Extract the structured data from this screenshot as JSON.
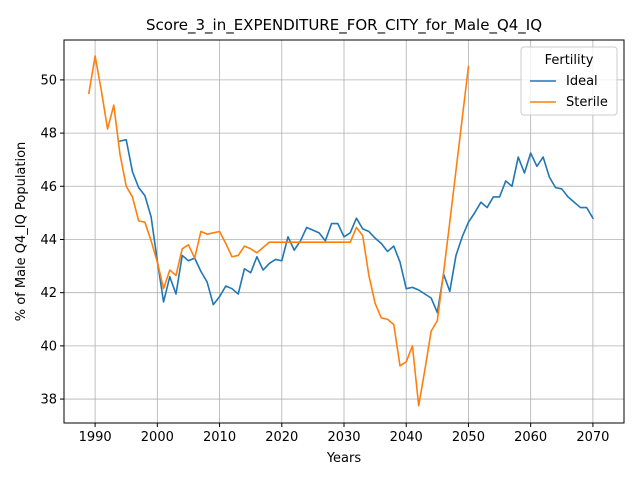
{
  "chart_data": {
    "type": "line",
    "title": "Score_3_in_EXPENDITURE_FOR_CITY_for_Male_Q4_IQ",
    "xlabel": "Years",
    "ylabel": "% of Male Q4_IQ Population",
    "xlim": [
      1985,
      2075
    ],
    "ylim": [
      37.1,
      51.5
    ],
    "xticks": [
      1990,
      2000,
      2010,
      2020,
      2030,
      2040,
      2050,
      2060,
      2070
    ],
    "yticks": [
      38,
      40,
      42,
      44,
      46,
      48,
      50
    ],
    "grid": true,
    "legend": {
      "title": "Fertility",
      "placement": "top-right"
    },
    "series": [
      {
        "name": "Ideal",
        "color": "#1f77b4",
        "x": [
          1994,
          1995,
          1996,
          1997,
          1998,
          1999,
          2000,
          2001,
          2002,
          2003,
          2004,
          2005,
          2006,
          2007,
          2008,
          2009,
          2010,
          2011,
          2012,
          2013,
          2014,
          2015,
          2016,
          2017,
          2018,
          2019,
          2020,
          2021,
          2022,
          2023,
          2024,
          2025,
          2026,
          2027,
          2028,
          2029,
          2030,
          2031,
          2032,
          2033,
          2034,
          2035,
          2036,
          2037,
          2038,
          2039,
          2040,
          2041,
          2042,
          2043,
          2044,
          2045,
          2046,
          2047,
          2048,
          2049,
          2050,
          2051,
          2052,
          2053,
          2054,
          2055,
          2056,
          2057,
          2058,
          2059,
          2060,
          2061,
          2062,
          2063,
          2064,
          2065,
          2066,
          2067,
          2068,
          2069,
          2070
        ],
        "values": [
          47.7,
          47.75,
          46.55,
          45.95,
          45.65,
          44.85,
          43.2,
          41.65,
          42.6,
          41.95,
          43.4,
          43.2,
          43.3,
          42.8,
          42.4,
          41.55,
          41.85,
          42.25,
          42.15,
          41.95,
          42.9,
          42.75,
          43.35,
          42.85,
          43.1,
          43.25,
          43.2,
          44.1,
          43.6,
          43.95,
          44.45,
          44.35,
          44.25,
          43.95,
          44.6,
          44.6,
          44.1,
          44.25,
          44.8,
          44.4,
          44.3,
          44.05,
          43.85,
          43.55,
          43.75,
          43.15,
          42.15,
          42.2,
          42.1,
          41.95,
          41.8,
          41.25,
          42.7,
          42.05,
          43.4,
          44.1,
          44.65,
          45.0,
          45.4,
          45.2,
          45.6,
          45.6,
          46.2,
          46.0,
          47.1,
          46.5,
          47.25,
          46.75,
          47.1,
          46.35,
          45.95,
          45.9,
          45.6,
          45.4,
          45.2,
          45.2,
          44.8
        ]
      },
      {
        "name": "Sterile",
        "color": "#ff7f0e",
        "x": [
          1989,
          1990,
          1991,
          1992,
          1993,
          1994,
          1995,
          1996,
          1997,
          1998,
          1999,
          2000,
          2001,
          2002,
          2003,
          2004,
          2005,
          2006,
          2007,
          2008,
          2009,
          2010,
          2011,
          2012,
          2013,
          2014,
          2015,
          2016,
          2017,
          2018,
          2019,
          2020,
          2021,
          2022,
          2023,
          2024,
          2025,
          2026,
          2027,
          2028,
          2029,
          2030,
          2031,
          2032,
          2033,
          2034,
          2035,
          2036,
          2037,
          2038,
          2039,
          2040,
          2041,
          2042,
          2043,
          2044,
          2045,
          2046,
          2047,
          2048,
          2049,
          2050
        ],
        "values": [
          49.5,
          50.9,
          49.6,
          48.15,
          49.05,
          47.2,
          46.0,
          45.6,
          44.7,
          44.65,
          43.95,
          43.15,
          42.15,
          42.85,
          42.65,
          43.65,
          43.8,
          43.3,
          44.3,
          44.2,
          44.25,
          44.3,
          43.85,
          43.35,
          43.4,
          43.75,
          43.65,
          43.5,
          43.7,
          43.9,
          43.9,
          43.9,
          43.9,
          43.9,
          43.9,
          43.9,
          43.9,
          43.9,
          43.9,
          43.9,
          43.9,
          43.9,
          43.9,
          44.45,
          44.15,
          42.65,
          41.6,
          41.05,
          41.0,
          40.8,
          39.25,
          39.4,
          40.0,
          37.75,
          39.1,
          40.55,
          40.95,
          42.75,
          44.65,
          46.6,
          48.55,
          50.5
        ]
      }
    ]
  }
}
